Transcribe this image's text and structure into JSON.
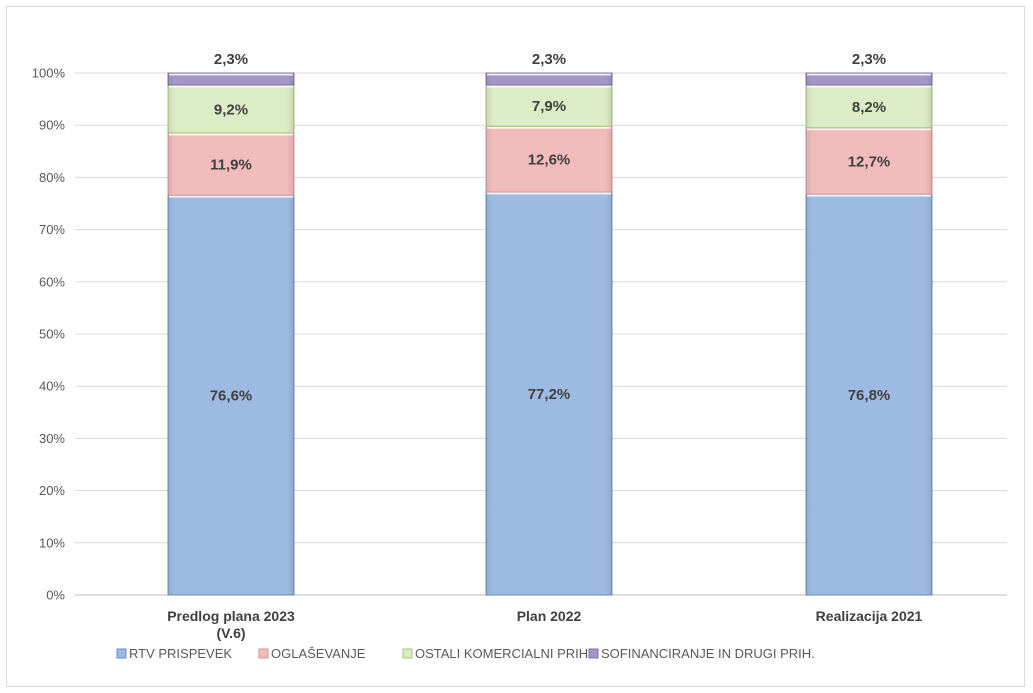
{
  "chart_data": {
    "type": "bar",
    "stacked": true,
    "percent_axis": true,
    "categories": [
      [
        "Predlog plana 2023",
        "(V.6)"
      ],
      [
        "Plan 2022"
      ],
      [
        "Realizacija 2021"
      ]
    ],
    "series": [
      {
        "name": "RTV PRISPEVEK",
        "values": [
          76.6,
          77.2,
          76.8
        ],
        "labels": [
          "76,6%",
          "77,2%",
          "76,8%"
        ],
        "color": "#9dbbe2",
        "stroke": "#6c8ebf"
      },
      {
        "name": "OGLAŠEVANJE",
        "values": [
          11.9,
          12.6,
          12.7
        ],
        "labels": [
          "11,9%",
          "12,6%",
          "12,7%"
        ],
        "color": "#f2bcbc",
        "stroke": "#d99594"
      },
      {
        "name": "OSTALI KOMERCIALNI PRIH.",
        "values": [
          9.2,
          7.9,
          8.2
        ],
        "labels": [
          "9,2%",
          "7,9%",
          "8,2%"
        ],
        "color": "#dcecc4",
        "stroke": "#a9c47f"
      },
      {
        "name": "SOFINANCIRANJE IN DRUGI PRIH.",
        "values": [
          2.3,
          2.3,
          2.3
        ],
        "labels": [
          "2,3%",
          "2,3%",
          "2,3%"
        ],
        "color": "#a497c8",
        "stroke": "#7e6fae"
      }
    ],
    "yticks": [
      "0%",
      "10%",
      "20%",
      "30%",
      "40%",
      "50%",
      "60%",
      "70%",
      "80%",
      "90%",
      "100%"
    ],
    "ylim": [
      0,
      100
    ],
    "grid": true,
    "legend_position": "bottom",
    "title": "",
    "xlabel": "",
    "ylabel": ""
  }
}
